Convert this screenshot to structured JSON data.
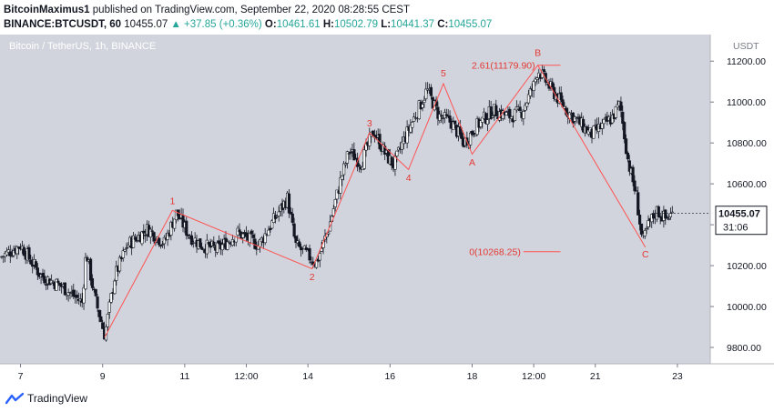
{
  "header": {
    "author": "BitcoinMaximus1",
    "published": "published on TradingView.com, September 22, 2020 08:28:55 CEST",
    "symbol": "BINANCE:BTCUSDT, 60",
    "last": "10455.07",
    "change": "+37.85 (+0.36%)",
    "open_label": "O:",
    "open": "10461.61",
    "high_label": "H:",
    "high": "10502.79",
    "low_label": "L:",
    "low": "10441.37",
    "close_label": "C:",
    "close": "10455.07"
  },
  "footer": {
    "brand": "TradingView"
  },
  "colors": {
    "background": "#d1d4dc",
    "candle": "#131722",
    "wave": "#ff5252",
    "label": "#e53935",
    "axis_bg": "#ffffff",
    "price_tag_bg": "#ffffff",
    "header_up": "#26a69a"
  },
  "chart_data": {
    "type": "candlestick",
    "title": "Bitcoin / TetherUS, 1h, BINANCE",
    "currency": "USDT",
    "ylim": [
      9720,
      11330
    ],
    "y_ticks": [
      9800,
      10000,
      10200,
      10400,
      10600,
      10800,
      11000,
      11200
    ],
    "y_tick_labels": [
      "9800.00",
      "10000.00",
      "10200.00",
      "10400.00",
      "10600.00",
      "10800.00",
      "11000.00",
      "11200.00"
    ],
    "x_ticks": [
      {
        "label": "7",
        "t": 0.5
      },
      {
        "label": "9",
        "t": 2.5
      },
      {
        "label": "11",
        "t": 4.5
      },
      {
        "label": "12:00",
        "t": 6.0
      },
      {
        "label": "14",
        "t": 7.5
      },
      {
        "label": "16",
        "t": 9.5
      },
      {
        "label": "18",
        "t": 11.5
      },
      {
        "label": "12:00",
        "t": 13.0
      },
      {
        "label": "21",
        "t": 14.5
      },
      {
        "label": "23",
        "t": 16.5
      }
    ],
    "xlim": [
      0,
      17.3
    ],
    "last_price": "10455.07",
    "last_price_value": 10455.07,
    "countdown": "31:06",
    "price_path": [
      [
        0,
        10240
      ],
      [
        0.5,
        10300
      ],
      [
        1.0,
        10150
      ],
      [
        1.5,
        10100
      ],
      [
        2.0,
        10020
      ],
      [
        2.1,
        10270
      ],
      [
        2.3,
        10050
      ],
      [
        2.55,
        9860
      ],
      [
        2.8,
        10150
      ],
      [
        3.1,
        10300
      ],
      [
        3.6,
        10380
      ],
      [
        4.0,
        10310
      ],
      [
        4.3,
        10460
      ],
      [
        4.6,
        10350
      ],
      [
        4.9,
        10300
      ],
      [
        5.3,
        10280
      ],
      [
        5.8,
        10360
      ],
      [
        6.3,
        10300
      ],
      [
        6.6,
        10400
      ],
      [
        7.0,
        10530
      ],
      [
        7.2,
        10300
      ],
      [
        7.5,
        10250
      ],
      [
        7.7,
        10210
      ],
      [
        8.0,
        10380
      ],
      [
        8.3,
        10620
      ],
      [
        8.5,
        10760
      ],
      [
        8.8,
        10700
      ],
      [
        9.1,
        10860
      ],
      [
        9.4,
        10740
      ],
      [
        9.6,
        10690
      ],
      [
        9.8,
        10800
      ],
      [
        10.2,
        10970
      ],
      [
        10.4,
        11060
      ],
      [
        10.7,
        10930
      ],
      [
        11.0,
        10900
      ],
      [
        11.3,
        10800
      ],
      [
        11.6,
        10880
      ],
      [
        12.0,
        10960
      ],
      [
        12.4,
        10930
      ],
      [
        12.7,
        10950
      ],
      [
        13.0,
        11080
      ],
      [
        13.1,
        11160
      ],
      [
        13.4,
        11070
      ],
      [
        13.8,
        10960
      ],
      [
        14.1,
        10900
      ],
      [
        14.4,
        10840
      ],
      [
        14.9,
        10920
      ],
      [
        15.1,
        10990
      ],
      [
        15.3,
        10710
      ],
      [
        15.5,
        10540
      ],
      [
        15.65,
        10310
      ],
      [
        15.8,
        10400
      ],
      [
        16.0,
        10470
      ],
      [
        16.2,
        10430
      ],
      [
        16.4,
        10455
      ]
    ],
    "waves": [
      {
        "points": [
          [
            2.55,
            9850
          ],
          [
            4.2,
            10470
          ],
          [
            7.6,
            10185
          ],
          [
            9.0,
            10850
          ],
          [
            9.95,
            10670
          ],
          [
            10.8,
            11090
          ],
          [
            11.5,
            10745
          ],
          [
            13.1,
            11180
          ],
          [
            15.72,
            10290
          ]
        ]
      }
    ],
    "wave_labels": [
      {
        "text": "1",
        "t": 4.2,
        "v": 10500
      },
      {
        "text": "2",
        "t": 7.6,
        "v": 10130
      },
      {
        "text": "3",
        "t": 9.0,
        "v": 10880
      },
      {
        "text": "4",
        "t": 9.95,
        "v": 10615
      },
      {
        "text": "5",
        "t": 10.8,
        "v": 11125
      },
      {
        "text": "A",
        "t": 11.5,
        "v": 10690
      },
      {
        "text": "B",
        "t": 13.1,
        "v": 11225
      },
      {
        "text": "C",
        "t": 15.72,
        "v": 10240
      }
    ],
    "fib_levels": [
      {
        "text": "2.61(11179.90)",
        "value": 11179.9,
        "t0": 13.1,
        "t1": 13.65
      },
      {
        "text": "0(10268.25)",
        "value": 10268.25,
        "t0": 12.75,
        "t1": 13.65
      }
    ]
  }
}
